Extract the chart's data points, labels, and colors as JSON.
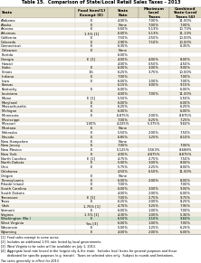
{
  "title": "Table 15.  Comparison of State/Local Retail Sales Taxes - 2013",
  "col_headers": [
    [
      "State",
      "",
      ""
    ],
    [
      "Food Item[1]",
      "Exempt (E)",
      ""
    ],
    [
      "State",
      "Rate",
      ""
    ],
    [
      "Maximum",
      "Local",
      "Taxes"
    ],
    [
      "Combined",
      "State-Local",
      "Taxes [4]"
    ]
  ],
  "rows": [
    [
      "Alabama",
      "E",
      "4.00%",
      "7.00%",
      "11.00%"
    ],
    [
      "Alaska",
      "E",
      "None",
      "7.00%",
      "7.00%"
    ],
    [
      "Arizona",
      "E",
      "5.60%",
      "5.13%",
      "10.73%"
    ],
    [
      "Arkansas",
      "1.5% [1]",
      "6.00%",
      "5.13%",
      "11.13%"
    ],
    [
      "California",
      "E",
      "7.50%",
      "2.50%",
      "10.00%"
    ],
    [
      "Colorado",
      "E",
      "2.90%",
      "7.10%",
      "10.00%"
    ],
    [
      "Connecticut",
      "E",
      "6.35%",
      "",
      "6.35%"
    ],
    [
      "Delaware",
      "E",
      "None",
      "",
      ""
    ],
    [
      "Florida",
      "",
      "6.00%",
      "",
      ""
    ],
    [
      "Georgia",
      "E [1]",
      "4.00%",
      "4.00%",
      "8.00%"
    ],
    [
      "Hawaii",
      "",
      "4.00%",
      "0.50%",
      "4.50%"
    ],
    [
      "Idaho",
      "E",
      "6.00%",
      "3.00%",
      "9.00%"
    ],
    [
      "Illinois",
      "1%",
      "6.25%",
      "3.75%",
      "10.00%"
    ],
    [
      "Indiana",
      "E",
      "7.00%",
      "",
      "7.00%"
    ],
    [
      "Iowa",
      "E",
      "6.00%",
      "1.00%",
      "7.00%"
    ],
    [
      "Kansas",
      "",
      "6.15%",
      "3.00%",
      "9.15%"
    ],
    [
      "Kentucky",
      "E",
      "6.00%",
      "",
      "6.00%"
    ],
    [
      "Louisiana",
      "",
      "4.00%",
      "7.00%",
      "11.00%"
    ],
    [
      "Maine",
      "E [1]",
      "5.50%",
      "",
      "5.50%"
    ],
    [
      "Maryland",
      "E",
      "6.00%",
      "",
      "6.00%"
    ],
    [
      "Massachusetts",
      "E",
      "6.25%",
      "",
      "6.25%"
    ],
    [
      "Michigan",
      "E",
      "6.00%",
      "",
      "6.00%"
    ],
    [
      "Minnesota",
      "E",
      "6.875%",
      "2.00%",
      "8.875%"
    ],
    [
      "Mississippi",
      "",
      "7.00%",
      "0.25%",
      "7.25%"
    ],
    [
      "Missouri",
      "1.00%",
      "4.225%",
      "5.375%",
      "9.60%"
    ],
    [
      "Montana",
      "E",
      "None",
      "",
      ""
    ],
    [
      "Nebraska",
      "E",
      "5.50%",
      "2.00%",
      "7.50%"
    ],
    [
      "Nevada",
      "E",
      "6.85%",
      "1.25%",
      "8.10%"
    ],
    [
      "New Hampshire",
      "E",
      "None",
      "",
      ""
    ],
    [
      "New Jersey",
      "E",
      "7.00%",
      "",
      "7.00%"
    ],
    [
      "New Mexico",
      "E",
      "5.125%",
      "3.563%",
      "8.688%"
    ],
    [
      "New York",
      "E",
      "4.00%",
      "4.875%",
      "8.875%"
    ],
    [
      "North Carolina",
      "E [1]",
      "4.75%",
      "2.75%",
      "7.50%"
    ],
    [
      "North Dakota",
      "E",
      "5.00%",
      "3.00%",
      "8.00%"
    ],
    [
      "Ohio",
      "E",
      "5.75%",
      "2.25%",
      "8.00%"
    ],
    [
      "Oklahoma",
      "",
      "4.50%",
      "6.50%",
      "11.00%"
    ],
    [
      "Oregon",
      "E",
      "None",
      "",
      ""
    ],
    [
      "Pennsylvania",
      "E",
      "6.00%",
      "2.00%",
      "8.00%"
    ],
    [
      "Rhode Island",
      "E",
      "7.00%",
      "",
      "7.00%"
    ],
    [
      "South Carolina",
      "E",
      "6.00%",
      "3.00%",
      "9.00%"
    ],
    [
      "South Dakota",
      "",
      "4.00%",
      "2.00%",
      "6.00%"
    ],
    [
      "Tennessee",
      "E [1]",
      "7.00%",
      "2.75%",
      "9.75%"
    ],
    [
      "Texas",
      "E",
      "6.25%",
      "2.00%",
      "8.25%"
    ],
    [
      "Utah",
      "1.75% [1]",
      "4.70%",
      "3.25%",
      "7.95%"
    ],
    [
      "Vermont",
      "E",
      "6.00%",
      "1.00%",
      "7.00%"
    ],
    [
      "Virginia",
      "1.5% [1]",
      "4.30%",
      "1.00%",
      "5.30%"
    ],
    [
      "Washington (No.)",
      "E",
      "6.50%",
      "3.10%",
      "9.60%"
    ],
    [
      "West Virginia",
      "Yes [3]",
      "6.00%",
      "1.00%",
      "7.00%"
    ],
    [
      "Wisconsin",
      "E",
      "5.00%",
      "1.25%",
      "6.25%"
    ],
    [
      "Wyoming",
      "E",
      "4.00%",
      "2.00%",
      "6.00%"
    ]
  ],
  "highlight_row": 46,
  "highlight_bg": "#cfe2cf",
  "header_bg": "#ddd8c0",
  "odd_bg": "#f0ece0",
  "even_bg": "#ffffff",
  "footnotes": [
    "[1]  Food sales exempt in some areas.",
    "[2]  Includes an additional 1.5% rate levied by local governments.",
    "[3]  West Virginia to be sales will be available on July 1, 2013.",
    "[4]  Aggregate local rate levied in the largest city & the state.  Includes local levies for general purposes and those",
    "      dedicated for specific purposes (e.g. transit).  Taxes on selected sites only.  Subject to rounds and limitations."
  ],
  "note": "Tax rates generally in effect for 2013."
}
